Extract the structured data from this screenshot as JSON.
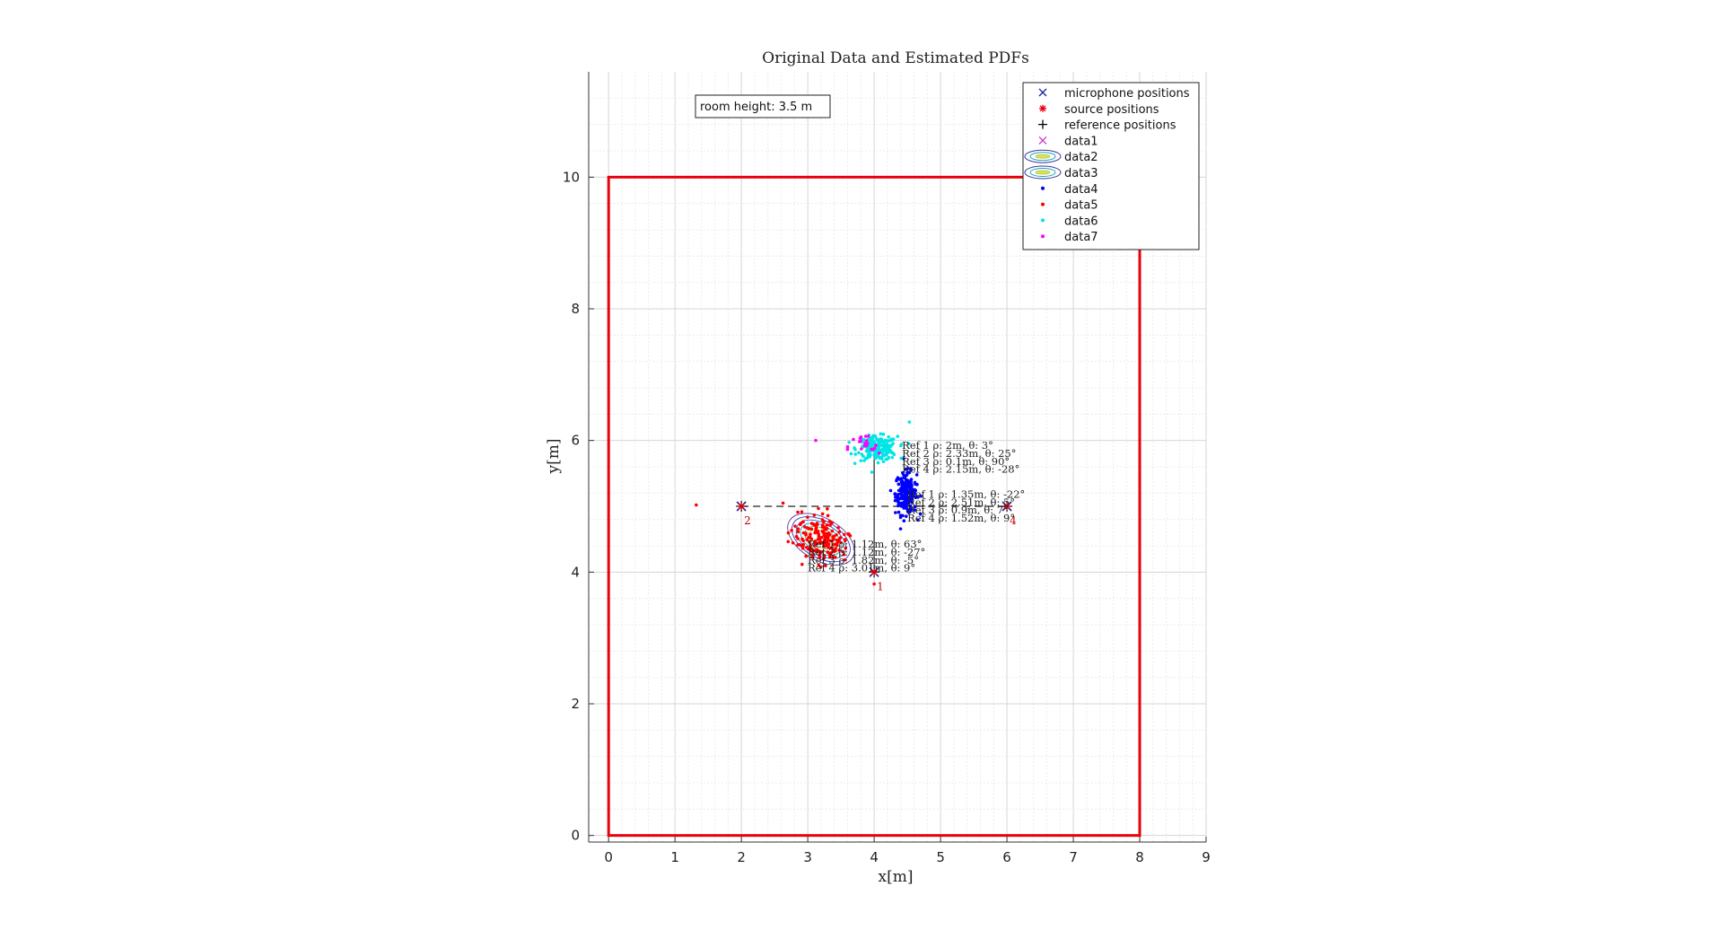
{
  "chart_data": {
    "type": "scatter",
    "title": "Original Data and Estimated PDFs",
    "xlabel": "x[m]",
    "ylabel": "y[m]",
    "xlim": [
      -0.3,
      9
    ],
    "ylim": [
      -0.1,
      11.6
    ],
    "xticks": [
      "0",
      "1",
      "2",
      "3",
      "4",
      "5",
      "6",
      "7",
      "8",
      "9"
    ],
    "yticks": [
      "0",
      "2",
      "4",
      "6",
      "8",
      "10"
    ],
    "grid": true,
    "minor_grid": true,
    "legend_position": "top-right",
    "annotation_box": "room height: 3.5 m",
    "room": {
      "x": [
        0,
        8
      ],
      "y": [
        0,
        10
      ],
      "color": "#e8000b"
    },
    "legend": [
      {
        "label": "microphone positions",
        "marker": "x",
        "color": "#1f1f9a"
      },
      {
        "label": "source positions",
        "marker": "*",
        "color": "#e8000b"
      },
      {
        "label": "reference positions",
        "marker": "+",
        "color": "#000000"
      },
      {
        "label": "data1",
        "marker": "x",
        "color": "#cc33cc"
      },
      {
        "label": "data2",
        "marker": "contour",
        "color": "#3a3aa0"
      },
      {
        "label": "data3",
        "marker": "contour",
        "color": "#3a3aa0"
      },
      {
        "label": "data4",
        "marker": ".",
        "color": "#0000ff"
      },
      {
        "label": "data5",
        "marker": ".",
        "color": "#ff0000"
      },
      {
        "label": "data6",
        "marker": ".",
        "color": "#00e5e5"
      },
      {
        "label": "data7",
        "marker": ".",
        "color": "#ff00ff"
      }
    ],
    "microphones": [
      {
        "x": 4,
        "y": 4,
        "label": "1"
      },
      {
        "x": 2,
        "y": 5,
        "label": "2"
      },
      {
        "x": 6,
        "y": 5,
        "label": "4"
      }
    ],
    "sources": [
      {
        "x": 4,
        "y": 4
      },
      {
        "x": 2,
        "y": 5
      },
      {
        "x": 6,
        "y": 5
      }
    ],
    "reference_lines": [
      {
        "x": [
          2,
          6
        ],
        "y": [
          5,
          5
        ],
        "style": "dashed"
      },
      {
        "x": [
          4,
          4
        ],
        "y": [
          4,
          5.9
        ],
        "style": "solid"
      }
    ],
    "clusters": [
      {
        "name": "data5",
        "color": "#ff0000",
        "cx": 3.2,
        "cy": 4.5,
        "sx": 0.22,
        "sy": 0.18,
        "n": 180
      },
      {
        "name": "data4",
        "color": "#0000ff",
        "cx": 4.48,
        "cy": 5.2,
        "sx": 0.08,
        "sy": 0.16,
        "n": 200
      },
      {
        "name": "data6",
        "color": "#00e5e5",
        "cx": 4.05,
        "cy": 5.88,
        "sx": 0.15,
        "sy": 0.09,
        "n": 200
      },
      {
        "name": "data7",
        "color": "#ff00ff",
        "cx": 3.85,
        "cy": 5.9,
        "sx": 0.12,
        "sy": 0.1,
        "n": 20
      }
    ],
    "outliers": [
      {
        "x": 1.32,
        "y": 5.02,
        "color": "#ff0000"
      },
      {
        "x": 3.12,
        "y": 6.0,
        "color": "#ff00ff"
      },
      {
        "x": 4.53,
        "y": 6.28,
        "color": "#00e5e5"
      },
      {
        "x": 4.0,
        "y": 3.82,
        "color": "#ff0000"
      }
    ],
    "ellipse": {
      "cx": 3.2,
      "cy": 4.5,
      "rx": [
        0.55,
        0.48,
        0.41,
        0.34,
        0.27,
        0.2
      ],
      "ry": [
        0.32,
        0.28,
        0.24,
        0.2,
        0.16,
        0.12
      ],
      "angle_deg": -30
    },
    "annotations": [
      {
        "x": 4.42,
        "y": 5.87,
        "text": "Ref 1 ρ: 2m, θ: 3°"
      },
      {
        "x": 4.42,
        "y": 5.75,
        "text": "Ref 2 ρ: 2.33m, θ: 25°"
      },
      {
        "x": 4.42,
        "y": 5.63,
        "text": "Ref 3 ρ: 0.1m, θ: 90°"
      },
      {
        "x": 4.42,
        "y": 5.51,
        "text": "Ref 4 ρ: 2.15m, θ: -28°"
      },
      {
        "x": 4.5,
        "y": 5.13,
        "text": "Ref 1 ρ: 1.35m, θ: -22°"
      },
      {
        "x": 4.5,
        "y": 5.01,
        "text": "Ref 2 ρ: 2.51m, θ: 5°"
      },
      {
        "x": 4.5,
        "y": 4.89,
        "text": "Ref 3 ρ: 0.9m, θ: 7°"
      },
      {
        "x": 4.5,
        "y": 4.77,
        "text": "Ref 4 ρ: 1.52m, θ: 9°"
      },
      {
        "x": 3.0,
        "y": 4.37,
        "text": "Ref 1 ρ: 1.12m, θ: 63°"
      },
      {
        "x": 3.0,
        "y": 4.25,
        "text": "Ref 2 ρ: 1.12m, θ: -27°"
      },
      {
        "x": 3.0,
        "y": 4.13,
        "text": "Ref 3 ρ: 1.82m, θ: -5°"
      },
      {
        "x": 3.0,
        "y": 4.01,
        "text": "Ref 4 ρ: 3.01m, θ: 9°"
      }
    ]
  }
}
